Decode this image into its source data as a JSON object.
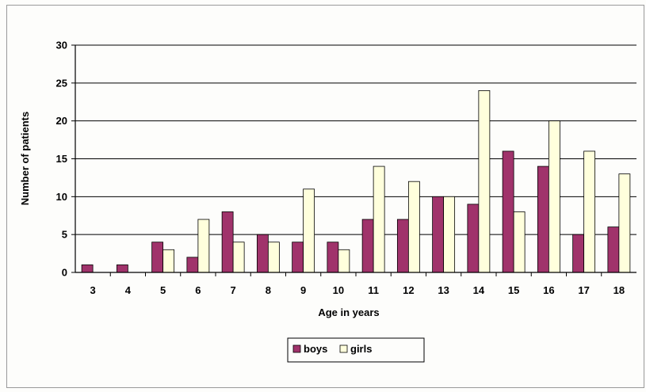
{
  "chart_data": {
    "type": "bar",
    "title": "",
    "xlabel": "Age in years",
    "ylabel": "Number of patients",
    "ylim": [
      0,
      30
    ],
    "yticks": [
      0,
      5,
      10,
      15,
      20,
      25,
      30
    ],
    "grid": "horizontal",
    "legend": "bottom-center",
    "categories": [
      "3",
      "4",
      "5",
      "6",
      "7",
      "8",
      "9",
      "10",
      "11",
      "12",
      "13",
      "14",
      "15",
      "16",
      "17",
      "18"
    ],
    "series": [
      {
        "name": "boys",
        "color": "#a0336b",
        "values": [
          1,
          1,
          4,
          2,
          8,
          5,
          4,
          4,
          7,
          7,
          10,
          9,
          16,
          14,
          5,
          6
        ]
      },
      {
        "name": "girls",
        "color": "#ffffdc",
        "values": [
          0,
          0,
          3,
          7,
          4,
          4,
          11,
          3,
          14,
          12,
          10,
          24,
          8,
          20,
          16,
          13
        ]
      }
    ]
  }
}
